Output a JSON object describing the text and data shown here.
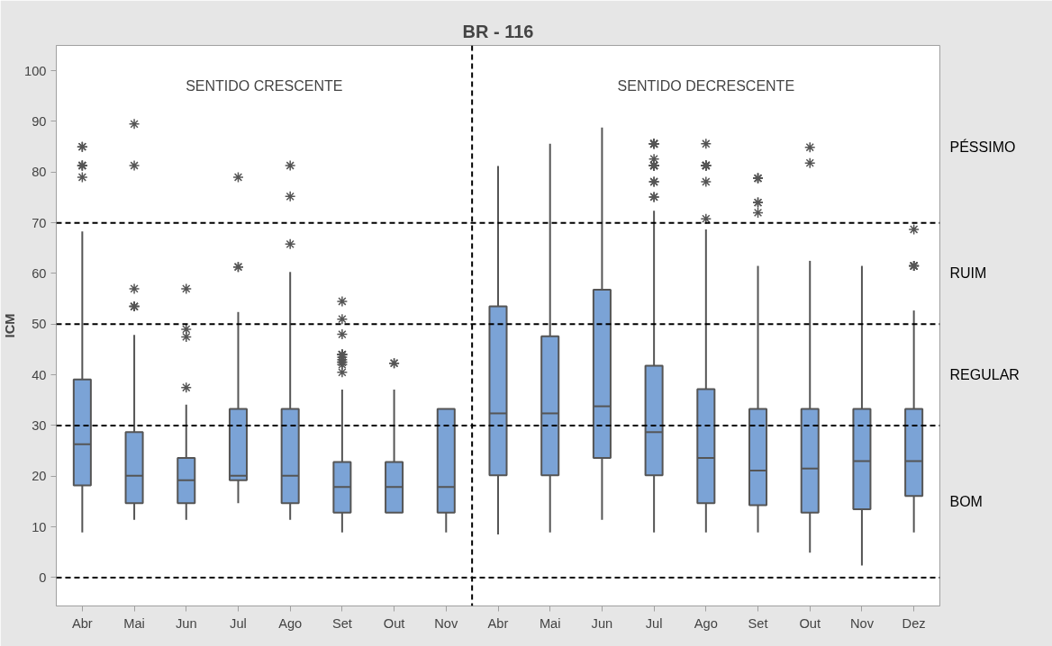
{
  "chart_data": {
    "type": "box",
    "title": "BR - 116",
    "ylabel": "ICM",
    "categories": [
      "Abr",
      "Mai",
      "Jun",
      "Jul",
      "Ago",
      "Set",
      "Out",
      "Nov",
      "Abr",
      "Mai",
      "Jun",
      "Jul",
      "Ago",
      "Set",
      "Out",
      "Nov",
      "Dez"
    ],
    "color": "#7ba3d6",
    "boxes": [
      {
        "low": 8.9,
        "q1": 18.2,
        "median": 26.3,
        "q3": 39.1,
        "high": 68.3,
        "outliers": [
          85,
          85,
          81.3,
          81.3,
          81.3,
          79
        ]
      },
      {
        "low": 11.4,
        "q1": 14.7,
        "median": 20.1,
        "q3": 28.7,
        "high": 47.9,
        "outliers": [
          89.5,
          81.3,
          57,
          53.5,
          53.5,
          53.5
        ]
      },
      {
        "low": 11.4,
        "q1": 14.7,
        "median": 19.2,
        "q3": 23.6,
        "high": 34.1,
        "outliers": [
          57,
          49,
          47.5,
          37.5
        ]
      },
      {
        "low": 14.7,
        "q1": 19.2,
        "median": 20.1,
        "q3": 33.3,
        "high": 52.4,
        "outliers": [
          79,
          61.3,
          61.3
        ]
      },
      {
        "low": 11.4,
        "q1": 14.7,
        "median": 20.1,
        "q3": 33.3,
        "high": 60.3,
        "outliers": [
          81.3,
          75.2,
          65.8
        ]
      },
      {
        "low": 8.9,
        "q1": 12.8,
        "median": 17.9,
        "q3": 22.8,
        "high": 37.1,
        "outliers": [
          54.5,
          51,
          48,
          44,
          44,
          44,
          44,
          43.5,
          43,
          42.5,
          42.5,
          42,
          40.5
        ]
      },
      {
        "low": 12.8,
        "q1": 12.8,
        "median": 17.9,
        "q3": 22.8,
        "high": 37.1,
        "outliers": [
          42.3,
          42.3
        ]
      },
      {
        "low": 8.9,
        "q1": 12.8,
        "median": 17.9,
        "q3": 33.3,
        "high": 33.3
      },
      {
        "low": 8.5,
        "q1": 20.2,
        "median": 32.4,
        "q3": 53.5,
        "high": 81.2
      },
      {
        "low": 8.9,
        "q1": 20.2,
        "median": 32.4,
        "q3": 47.6,
        "high": 85.6
      },
      {
        "low": 11.4,
        "q1": 23.6,
        "median": 33.8,
        "q3": 56.8,
        "high": 88.8
      },
      {
        "low": 8.9,
        "q1": 20.2,
        "median": 28.7,
        "q3": 41.8,
        "high": 72.4,
        "outliers": [
          85.6,
          85.6,
          85.6,
          85.6,
          85.6,
          82.6,
          81.3,
          81.3,
          81.3,
          81.3,
          81.3,
          81.3,
          78.1,
          78.1,
          75.1,
          75.1
        ]
      },
      {
        "low": 8.9,
        "q1": 14.7,
        "median": 23.6,
        "q3": 37.2,
        "high": 68.7,
        "outliers": [
          85.6,
          81.3,
          81.3,
          81.3,
          81.3,
          81.3,
          78.1,
          70.8
        ]
      },
      {
        "low": 8.9,
        "q1": 14.3,
        "median": 21.1,
        "q3": 33.3,
        "high": 61.5,
        "outliers": [
          78.8,
          78.8,
          78.8,
          74,
          74,
          72
        ]
      },
      {
        "low": 4.9,
        "q1": 12.8,
        "median": 21.5,
        "q3": 33.3,
        "high": 62.5,
        "outliers": [
          84.9,
          81.8
        ]
      },
      {
        "low": 2.4,
        "q1": 13.5,
        "median": 23,
        "q3": 33.3,
        "high": 61.5
      },
      {
        "low": 8.9,
        "q1": 16.1,
        "median": 23,
        "q3": 33.3,
        "high": 52.7,
        "outliers": [
          68.7,
          61.5,
          61.5,
          61.5,
          61.5
        ]
      }
    ],
    "ylim": [
      -5.6,
      105
    ],
    "yticks": [
      0,
      10,
      20,
      30,
      40,
      50,
      60,
      70,
      80,
      90,
      100
    ],
    "grid": false,
    "ref_lines": [
      {
        "axis": "y",
        "value": 0,
        "line_style": "dashed",
        "color": "#000000"
      },
      {
        "axis": "y",
        "value": 30,
        "line_style": "dashed",
        "color": "#000000"
      },
      {
        "axis": "y",
        "value": 50,
        "line_style": "dashed",
        "color": "#000000"
      },
      {
        "axis": "y",
        "value": 70,
        "line_style": "dashed",
        "color": "#000000"
      }
    ],
    "annotations": [
      "SENTIDO CRESCENTE",
      "SENTIDO DECRESCENTE",
      "PÉSSIMO",
      "RUIM",
      "REGULAR",
      "BOM"
    ]
  }
}
